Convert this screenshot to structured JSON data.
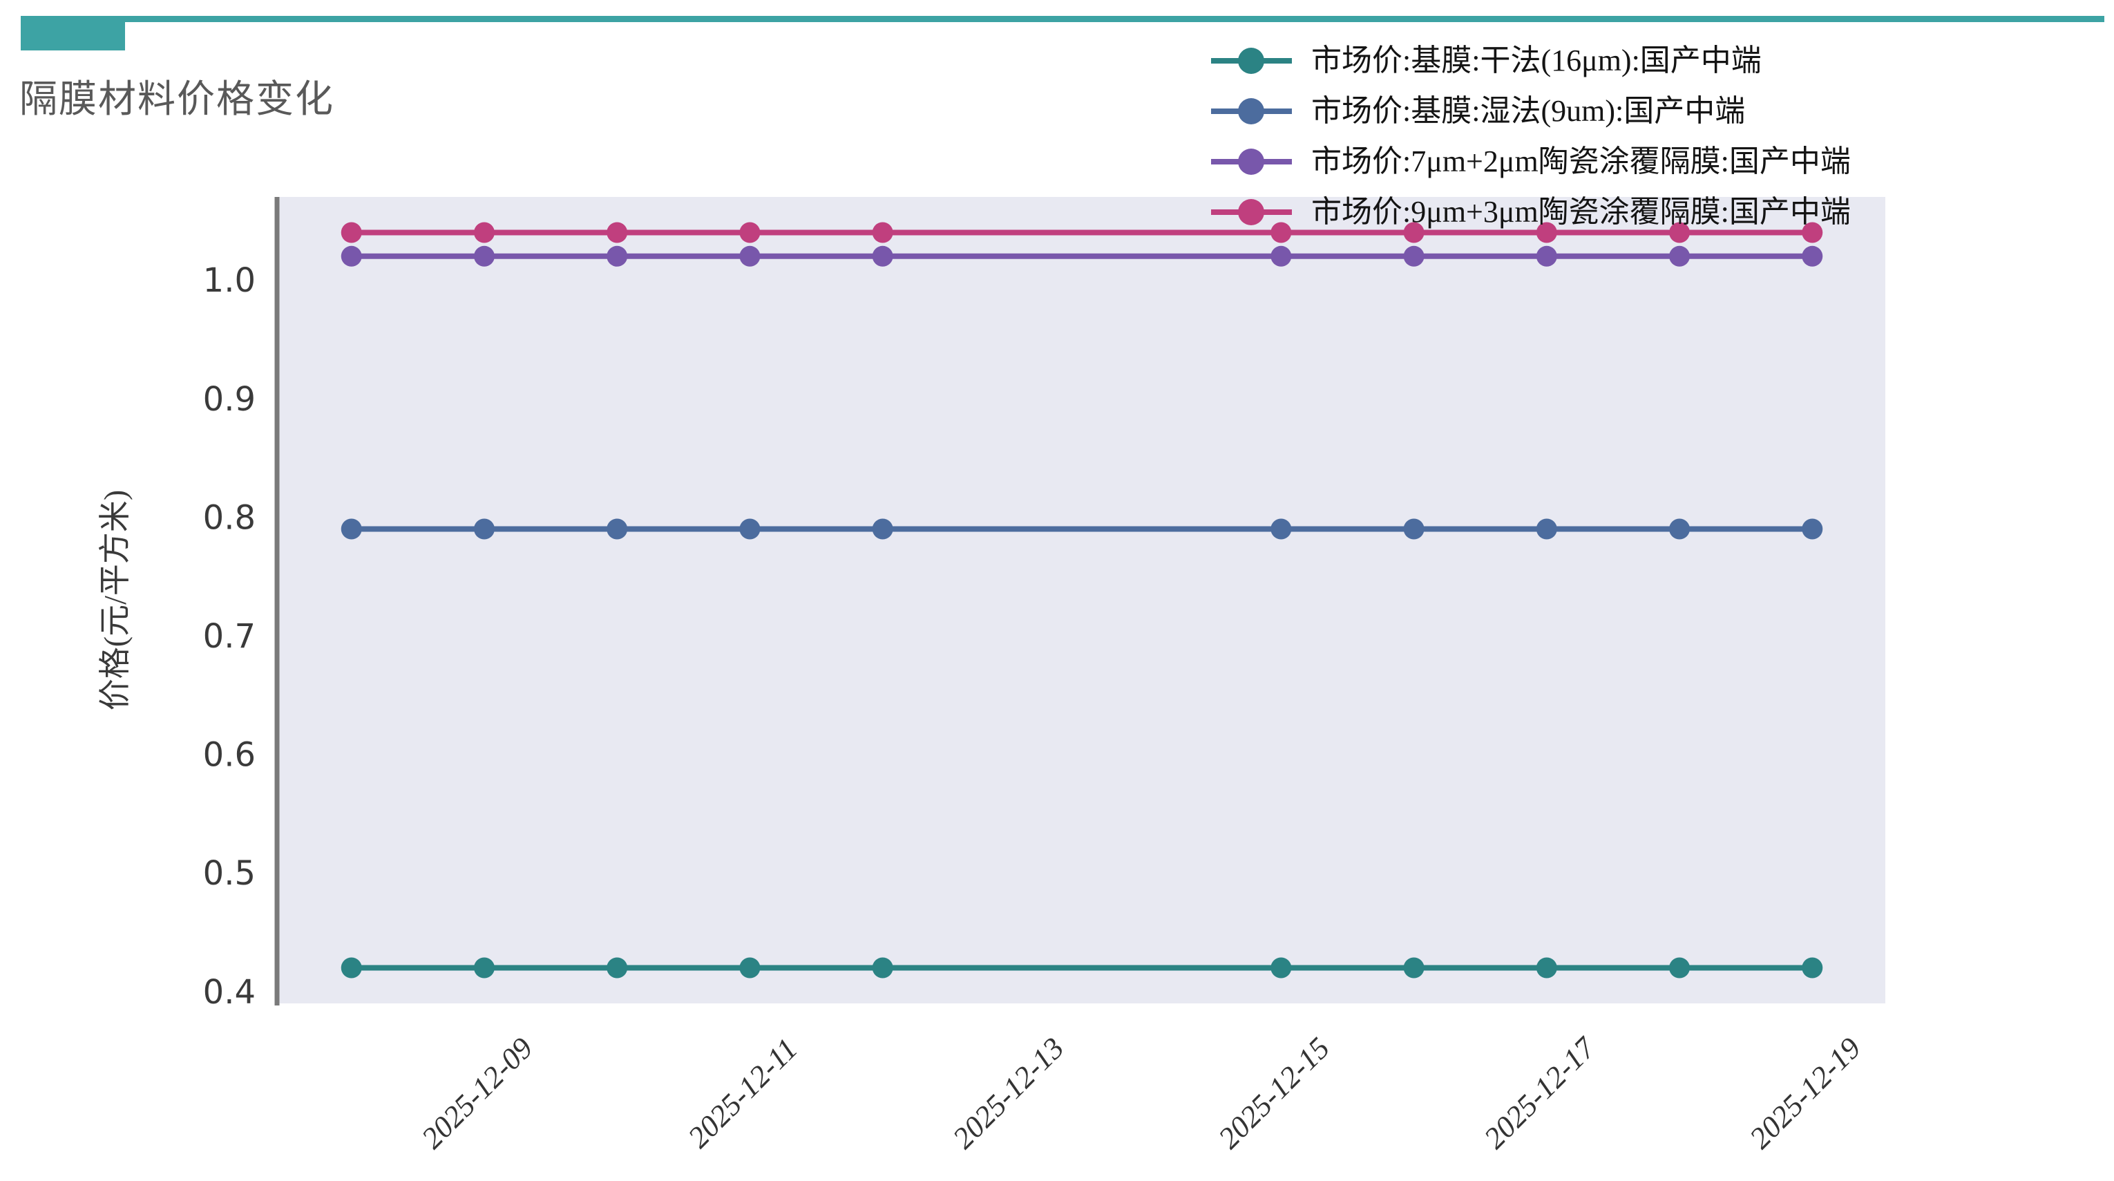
{
  "page": {
    "background": "#ffffff",
    "accent_color": "#3da3a4"
  },
  "header": {
    "title": "隔膜材料价格变化",
    "title_color": "#595959"
  },
  "chart_data": {
    "type": "line",
    "title": "隔膜材料价格变化",
    "xlabel": "",
    "ylabel": "价格(元/平方米)",
    "plot_background": "#e8e9f2",
    "axis_spine_color": "#7a7a7a",
    "tick_label_color": "#3a3a3a",
    "grid": false,
    "legend_position": "top-right",
    "ylim": [
      0.39,
      1.07
    ],
    "yticks": [
      0.4,
      0.5,
      0.6,
      0.7,
      0.8,
      0.9,
      1.0
    ],
    "x_dates": [
      "2025-12-08",
      "2025-12-09",
      "2025-12-10",
      "2025-12-11",
      "2025-12-12",
      "2025-12-15",
      "2025-12-16",
      "2025-12-17",
      "2025-12-18",
      "2025-12-19"
    ],
    "x_day_offsets": [
      0,
      1,
      2,
      3,
      4,
      7,
      8,
      9,
      10,
      11
    ],
    "xlim_days": [
      -0.55,
      11.55
    ],
    "xtick_labels": [
      "2025-12-09",
      "2025-12-11",
      "2025-12-13",
      "2025-12-15",
      "2025-12-17",
      "2025-12-19"
    ],
    "xtick_days": [
      1,
      3,
      5,
      7,
      9,
      11
    ],
    "series": [
      {
        "name": "市场价:基膜:干法(16μm):国产中端",
        "color": "#2b8384",
        "values": [
          0.42,
          0.42,
          0.42,
          0.42,
          0.42,
          0.42,
          0.42,
          0.42,
          0.42,
          0.42
        ]
      },
      {
        "name": "市场价:基膜:湿法(9um):国产中端",
        "color": "#4c6c9e",
        "values": [
          0.79,
          0.79,
          0.79,
          0.79,
          0.79,
          0.79,
          0.79,
          0.79,
          0.79,
          0.79
        ]
      },
      {
        "name": "市场价:7μm+2μm陶瓷涂覆隔膜:国产中端",
        "color": "#7857ab",
        "values": [
          1.02,
          1.02,
          1.02,
          1.02,
          1.02,
          1.02,
          1.02,
          1.02,
          1.02,
          1.02
        ]
      },
      {
        "name": "市场价:9μm+3μm陶瓷涂覆隔膜:国产中端",
        "color": "#c03f7e",
        "values": [
          1.04,
          1.04,
          1.04,
          1.04,
          1.04,
          1.04,
          1.04,
          1.04,
          1.04,
          1.04
        ]
      }
    ]
  }
}
